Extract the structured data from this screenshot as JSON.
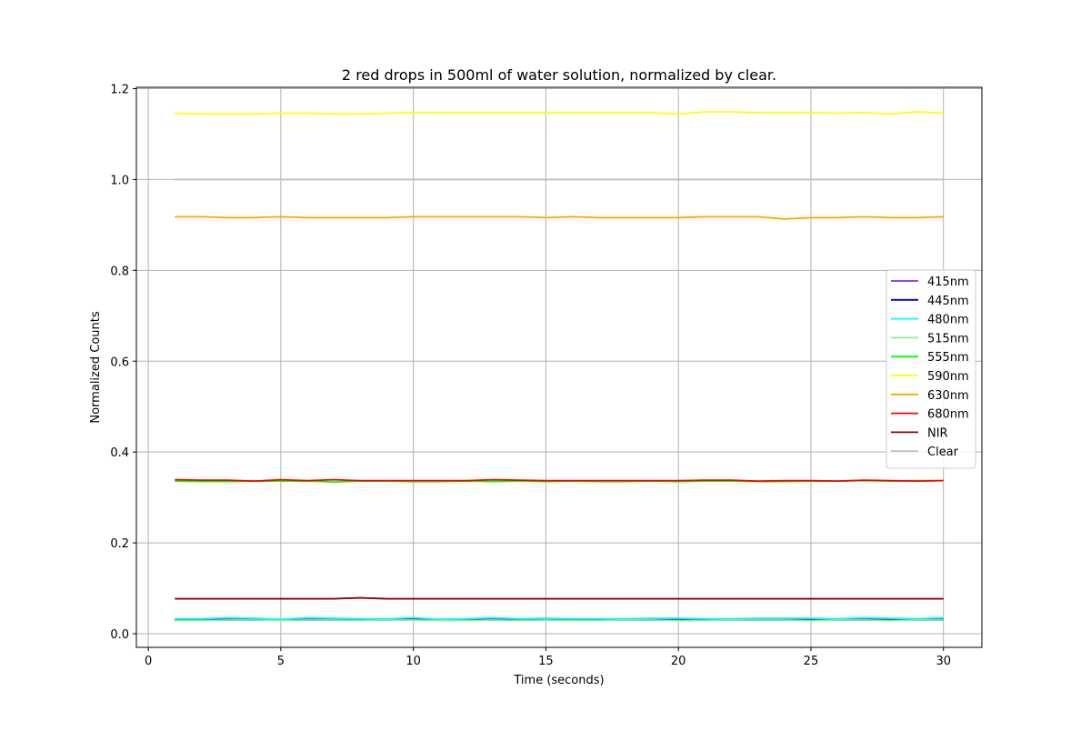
{
  "chart_data": {
    "type": "line",
    "title": "2 red drops in 500ml of water solution, normalized by clear.",
    "xlabel": "Time (seconds)",
    "ylabel": "Normalized Counts",
    "xlim": [
      -0.45,
      31.45
    ],
    "ylim": [
      -0.03,
      1.203
    ],
    "xticks": [
      0,
      5,
      10,
      15,
      20,
      25,
      30
    ],
    "xtick_labels": [
      "0",
      "5",
      "10",
      "15",
      "20",
      "25",
      "30"
    ],
    "yticks": [
      0.0,
      0.2,
      0.4,
      0.6,
      0.8,
      1.0,
      1.2
    ],
    "ytick_labels": [
      "0.0",
      "0.2",
      "0.4",
      "0.6",
      "0.8",
      "1.0",
      "1.2"
    ],
    "grid": true,
    "legend_position": "center-right",
    "x": [
      1,
      2,
      3,
      4,
      5,
      6,
      7,
      8,
      9,
      10,
      11,
      12,
      13,
      14,
      15,
      16,
      17,
      18,
      19,
      20,
      21,
      22,
      23,
      24,
      25,
      26,
      27,
      28,
      29,
      30
    ],
    "series": [
      {
        "name": "415nm",
        "color": "#8a2be2",
        "values": [
          0.03,
          0.03,
          0.03,
          0.03,
          0.03,
          0.03,
          0.03,
          0.03,
          0.03,
          0.031,
          0.03,
          0.03,
          0.03,
          0.03,
          0.03,
          0.03,
          0.03,
          0.03,
          0.03,
          0.03,
          0.03,
          0.03,
          0.03,
          0.03,
          0.03,
          0.03,
          0.03,
          0.03,
          0.03,
          0.03
        ]
      },
      {
        "name": "445nm",
        "color": "#0000cd",
        "values": [
          0.031,
          0.031,
          0.031,
          0.031,
          0.03,
          0.031,
          0.031,
          0.031,
          0.031,
          0.032,
          0.031,
          0.031,
          0.031,
          0.031,
          0.031,
          0.031,
          0.031,
          0.031,
          0.031,
          0.031,
          0.031,
          0.031,
          0.031,
          0.031,
          0.031,
          0.031,
          0.031,
          0.031,
          0.031,
          0.031
        ]
      },
      {
        "name": "480nm",
        "color": "#00ffff",
        "values": [
          0.033,
          0.033,
          0.035,
          0.034,
          0.032,
          0.035,
          0.034,
          0.033,
          0.033,
          0.035,
          0.032,
          0.033,
          0.035,
          0.033,
          0.034,
          0.033,
          0.033,
          0.033,
          0.034,
          0.034,
          0.033,
          0.033,
          0.034,
          0.034,
          0.034,
          0.033,
          0.035,
          0.034,
          0.033,
          0.035
        ]
      },
      {
        "name": "515nm",
        "color": "#90ee90",
        "values": [
          0.029,
          0.029,
          0.03,
          0.03,
          0.029,
          0.03,
          0.03,
          0.029,
          0.03,
          0.03,
          0.029,
          0.029,
          0.03,
          0.029,
          0.03,
          0.029,
          0.029,
          0.03,
          0.03,
          0.029,
          0.029,
          0.03,
          0.03,
          0.03,
          0.029,
          0.03,
          0.03,
          0.029,
          0.03,
          0.03
        ]
      },
      {
        "name": "555nm",
        "color": "#00ff00",
        "values": [
          0.336,
          0.335,
          0.335,
          0.336,
          0.336,
          0.336,
          0.334,
          0.336,
          0.336,
          0.335,
          0.335,
          0.336,
          0.335,
          0.336,
          0.335,
          0.336,
          0.335,
          0.335,
          0.336,
          0.335,
          0.336,
          0.336,
          0.335,
          0.335,
          0.336,
          0.336,
          0.337,
          0.336,
          0.337,
          0.337
        ]
      },
      {
        "name": "590nm",
        "color": "#ffff00",
        "values": [
          1.146,
          1.144,
          1.144,
          1.144,
          1.146,
          1.146,
          1.144,
          1.144,
          1.146,
          1.147,
          1.147,
          1.147,
          1.147,
          1.147,
          1.147,
          1.147,
          1.147,
          1.147,
          1.147,
          1.144,
          1.149,
          1.149,
          1.147,
          1.147,
          1.147,
          1.146,
          1.147,
          1.144,
          1.149,
          1.146
        ]
      },
      {
        "name": "630nm",
        "color": "#ffa500",
        "values": [
          0.918,
          0.918,
          0.916,
          0.916,
          0.918,
          0.916,
          0.916,
          0.916,
          0.916,
          0.918,
          0.918,
          0.918,
          0.918,
          0.918,
          0.916,
          0.918,
          0.916,
          0.916,
          0.916,
          0.916,
          0.918,
          0.918,
          0.918,
          0.913,
          0.916,
          0.916,
          0.918,
          0.916,
          0.916,
          0.918
        ]
      },
      {
        "name": "680nm",
        "color": "#ff0000",
        "values": [
          0.339,
          0.338,
          0.338,
          0.336,
          0.339,
          0.337,
          0.339,
          0.337,
          0.337,
          0.337,
          0.337,
          0.337,
          0.339,
          0.338,
          0.337,
          0.337,
          0.337,
          0.337,
          0.337,
          0.337,
          0.338,
          0.338,
          0.336,
          0.337,
          0.337,
          0.336,
          0.338,
          0.337,
          0.336,
          0.337
        ]
      },
      {
        "name": "NIR",
        "color": "#8b0000",
        "values": [
          0.077,
          0.077,
          0.077,
          0.077,
          0.077,
          0.077,
          0.077,
          0.079,
          0.077,
          0.077,
          0.077,
          0.077,
          0.077,
          0.077,
          0.077,
          0.077,
          0.077,
          0.077,
          0.077,
          0.077,
          0.077,
          0.077,
          0.077,
          0.077,
          0.077,
          0.077,
          0.077,
          0.077,
          0.077,
          0.077
        ]
      },
      {
        "name": "Clear",
        "color": "#c0c0c0",
        "values": [
          1,
          1,
          1,
          1,
          1,
          1,
          1,
          1,
          1,
          1,
          1,
          1,
          1,
          1,
          1,
          1,
          1,
          1,
          1,
          1,
          1,
          1,
          1,
          1,
          1,
          1,
          1,
          1,
          1,
          1
        ]
      }
    ]
  }
}
